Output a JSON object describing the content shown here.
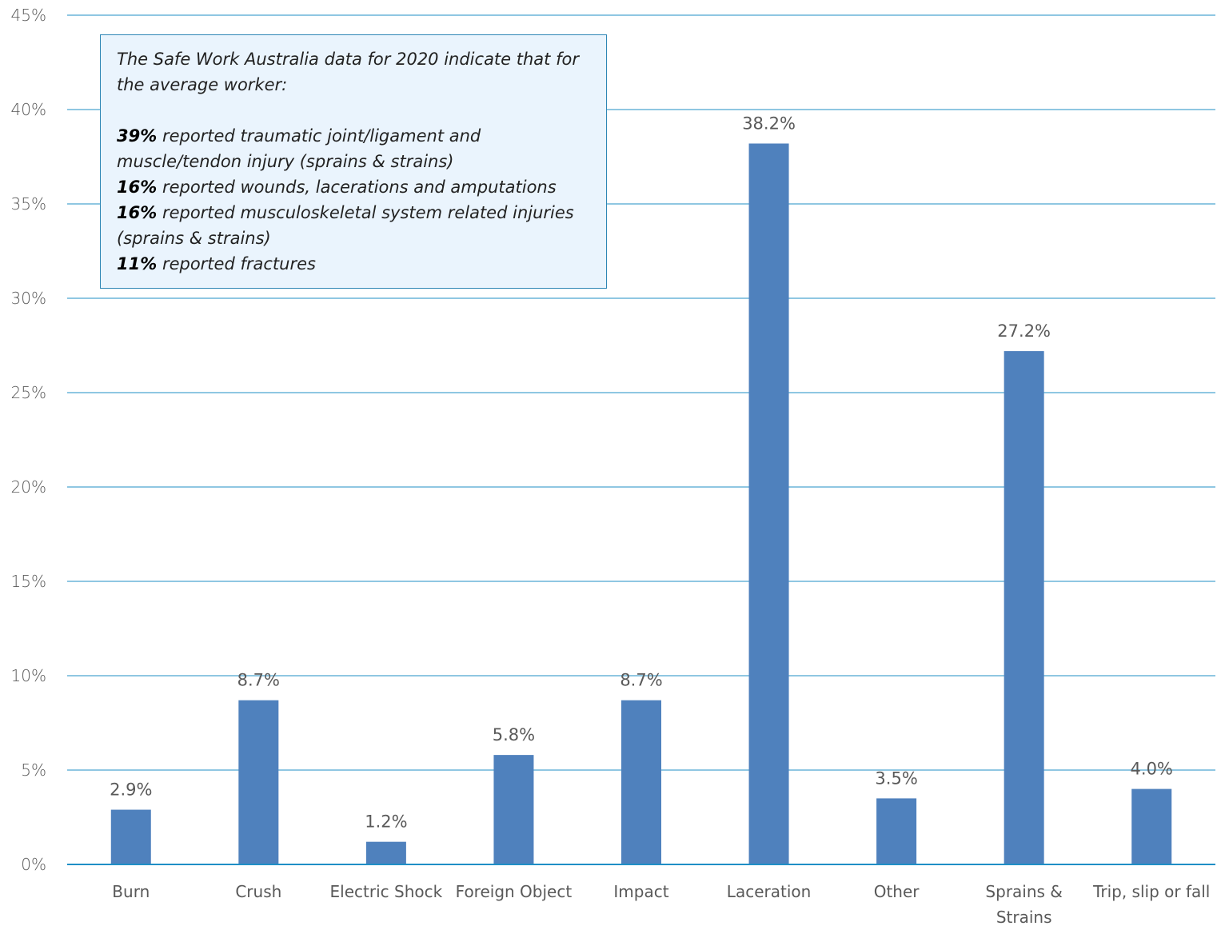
{
  "chart_data": {
    "type": "bar",
    "categories": [
      "Burn",
      "Crush",
      "Electric Shock",
      "Foreign Object",
      "Impact",
      "Laceration",
      "Other",
      "Sprains & Strains",
      "Trip, slip or fall"
    ],
    "values": [
      2.9,
      8.7,
      1.2,
      5.8,
      8.7,
      38.2,
      3.5,
      27.2,
      4.0
    ],
    "data_labels": [
      "2.9%",
      "8.7%",
      "1.2%",
      "5.8%",
      "8.7%",
      "38.2%",
      "3.5%",
      "27.2%",
      "4.0%"
    ],
    "y_ticks": [
      "0%",
      "5%",
      "10%",
      "15%",
      "20%",
      "25%",
      "30%",
      "35%",
      "40%",
      "45%"
    ],
    "ylim": [
      0,
      45
    ],
    "grid": true,
    "bar_color": "#4f81bd",
    "grid_color": "#1f8fc6"
  },
  "callout": {
    "intro": "The Safe Work Australia data for 2020 indicate that for the average worker:",
    "stats": [
      {
        "pct": "39%",
        "text": " reported traumatic joint/ligament and muscle/tendon injury (sprains & strains)"
      },
      {
        "pct": "16%",
        "text": " reported wounds, lacerations and amputations"
      },
      {
        "pct": "16%",
        "text": " reported musculoskeletal system related injuries (sprains & strains)"
      },
      {
        "pct": "11%",
        "text": " reported fractures"
      }
    ]
  }
}
